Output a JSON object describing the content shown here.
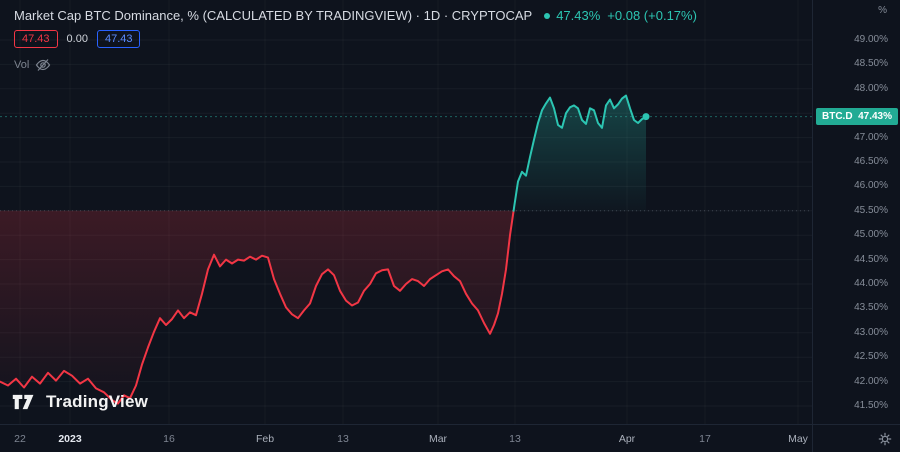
{
  "header": {
    "title": "Market Cap BTC Dominance, % (CALCULATED BY TRADINGVIEW) · 1D · CRYPTOCAP",
    "quote": {
      "value": "47.43%",
      "change": "+0.08 (+0.17%)"
    },
    "values_row": {
      "red_value": "47.43",
      "mid_value": "0.00",
      "blue_value": "47.43"
    },
    "vol_label": "Vol"
  },
  "watermark": {
    "brand": "TradingView"
  },
  "price_axis": {
    "unit": "%",
    "badge": {
      "symbol": "BTC.D",
      "value": "47.43%"
    }
  },
  "colors": {
    "background": "#0e131d",
    "panel_border": "#1e2634",
    "teal": "#2cc5b2",
    "teal_badge": "#22ab94",
    "red": "#f23645",
    "blue": "#2962ff",
    "text_primary": "#d6dae2",
    "text_muted": "#868d99"
  },
  "chart_data": {
    "type": "area",
    "title": "Market Cap BTC Dominance, % (CALCULATED BY TRADINGVIEW)",
    "symbol": "CRYPTOCAP:BTC.D",
    "timeframe": "1D",
    "last_value": 47.43,
    "change": 0.08,
    "change_pct": 0.17,
    "baseline": 45.5,
    "ylim": [
      41.5,
      49.0
    ],
    "grid": true,
    "y_ticks": [
      "49.00%",
      "48.50%",
      "48.00%",
      "47.50%",
      "47.00%",
      "46.50%",
      "46.00%",
      "45.50%",
      "45.00%",
      "44.50%",
      "44.00%",
      "43.50%",
      "43.00%",
      "42.50%",
      "42.00%",
      "41.50%"
    ],
    "x_ticks": [
      {
        "label": "22",
        "x": 20,
        "tier": "day"
      },
      {
        "label": "2023",
        "x": 70,
        "tier": "year"
      },
      {
        "label": "16",
        "x": 169,
        "tier": "day"
      },
      {
        "label": "Feb",
        "x": 265,
        "tier": "month"
      },
      {
        "label": "13",
        "x": 343,
        "tier": "day"
      },
      {
        "label": "Mar",
        "x": 438,
        "tier": "month"
      },
      {
        "label": "13",
        "x": 515,
        "tier": "day"
      },
      {
        "label": "Apr",
        "x": 627,
        "tier": "month"
      },
      {
        "label": "17",
        "x": 705,
        "tier": "day"
      },
      {
        "label": "May",
        "x": 798,
        "tier": "month"
      }
    ],
    "points": [
      [
        0,
        42.0
      ],
      [
        8,
        41.92
      ],
      [
        16,
        42.06
      ],
      [
        24,
        41.88
      ],
      [
        32,
        42.1
      ],
      [
        40,
        41.96
      ],
      [
        48,
        42.18
      ],
      [
        56,
        42.02
      ],
      [
        64,
        42.22
      ],
      [
        72,
        42.12
      ],
      [
        80,
        41.96
      ],
      [
        88,
        42.06
      ],
      [
        96,
        41.86
      ],
      [
        104,
        41.78
      ],
      [
        112,
        41.62
      ],
      [
        118,
        41.55
      ],
      [
        124,
        41.72
      ],
      [
        130,
        41.66
      ],
      [
        136,
        41.92
      ],
      [
        142,
        42.35
      ],
      [
        148,
        42.7
      ],
      [
        154,
        43.02
      ],
      [
        160,
        43.3
      ],
      [
        166,
        43.16
      ],
      [
        172,
        43.28
      ],
      [
        178,
        43.46
      ],
      [
        184,
        43.3
      ],
      [
        190,
        43.42
      ],
      [
        196,
        43.36
      ],
      [
        202,
        43.8
      ],
      [
        208,
        44.3
      ],
      [
        214,
        44.6
      ],
      [
        220,
        44.36
      ],
      [
        226,
        44.5
      ],
      [
        232,
        44.42
      ],
      [
        238,
        44.5
      ],
      [
        244,
        44.48
      ],
      [
        250,
        44.56
      ],
      [
        256,
        44.5
      ],
      [
        262,
        44.58
      ],
      [
        268,
        44.54
      ],
      [
        274,
        44.1
      ],
      [
        280,
        43.8
      ],
      [
        286,
        43.52
      ],
      [
        292,
        43.38
      ],
      [
        298,
        43.3
      ],
      [
        304,
        43.46
      ],
      [
        310,
        43.6
      ],
      [
        316,
        43.96
      ],
      [
        322,
        44.2
      ],
      [
        328,
        44.3
      ],
      [
        334,
        44.18
      ],
      [
        340,
        43.86
      ],
      [
        346,
        43.66
      ],
      [
        352,
        43.56
      ],
      [
        358,
        43.62
      ],
      [
        364,
        43.86
      ],
      [
        370,
        44.0
      ],
      [
        376,
        44.22
      ],
      [
        382,
        44.28
      ],
      [
        388,
        44.3
      ],
      [
        394,
        43.96
      ],
      [
        400,
        43.86
      ],
      [
        406,
        44.0
      ],
      [
        412,
        44.1
      ],
      [
        418,
        44.06
      ],
      [
        424,
        43.96
      ],
      [
        430,
        44.1
      ],
      [
        436,
        44.18
      ],
      [
        442,
        44.26
      ],
      [
        448,
        44.3
      ],
      [
        454,
        44.16
      ],
      [
        460,
        44.06
      ],
      [
        466,
        43.8
      ],
      [
        472,
        43.6
      ],
      [
        478,
        43.46
      ],
      [
        484,
        43.2
      ],
      [
        490,
        42.98
      ],
      [
        494,
        43.16
      ],
      [
        498,
        43.4
      ],
      [
        502,
        43.8
      ],
      [
        506,
        44.3
      ],
      [
        510,
        45.0
      ],
      [
        514,
        45.56
      ],
      [
        518,
        46.1
      ],
      [
        522,
        46.3
      ],
      [
        526,
        46.22
      ],
      [
        530,
        46.6
      ],
      [
        534,
        46.96
      ],
      [
        538,
        47.3
      ],
      [
        542,
        47.56
      ],
      [
        546,
        47.7
      ],
      [
        550,
        47.82
      ],
      [
        554,
        47.6
      ],
      [
        558,
        47.26
      ],
      [
        562,
        47.2
      ],
      [
        566,
        47.5
      ],
      [
        570,
        47.62
      ],
      [
        574,
        47.66
      ],
      [
        578,
        47.6
      ],
      [
        582,
        47.36
      ],
      [
        586,
        47.28
      ],
      [
        590,
        47.6
      ],
      [
        594,
        47.56
      ],
      [
        598,
        47.3
      ],
      [
        602,
        47.2
      ],
      [
        606,
        47.66
      ],
      [
        610,
        47.78
      ],
      [
        614,
        47.6
      ],
      [
        618,
        47.68
      ],
      [
        622,
        47.8
      ],
      [
        626,
        47.86
      ],
      [
        630,
        47.6
      ],
      [
        634,
        47.36
      ],
      [
        638,
        47.3
      ],
      [
        642,
        47.38
      ],
      [
        646,
        47.43
      ]
    ]
  }
}
